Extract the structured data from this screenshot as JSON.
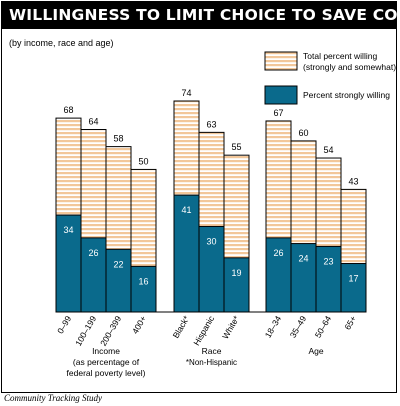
{
  "chart_data": {
    "type": "bar",
    "title": "WILLINGNESS TO LIMIT CHOICE TO SAVE COSTS",
    "subtitle": "(by income, race and age)",
    "ylim": [
      0,
      80
    ],
    "grid": false,
    "legend_position": "top-right",
    "series": [
      {
        "name": "Total percent willing (strongly and somewhat)",
        "color": "#f2c79a",
        "pattern": "horizontal-lines"
      },
      {
        "name": "Percent strongly willing",
        "color": "#0a6a8c"
      }
    ],
    "groups": [
      {
        "label_lines": [
          "Income",
          "(as percentage of",
          "federal poverty level)"
        ],
        "categories": [
          "0–99",
          "100–199",
          "200–399",
          "400+"
        ],
        "total": [
          68,
          64,
          58,
          50
        ],
        "strongly": [
          34,
          26,
          22,
          16
        ]
      },
      {
        "label_lines": [
          "Race",
          "*Non-Hispanic"
        ],
        "categories": [
          "Black*",
          "Hispanic",
          "White*"
        ],
        "total": [
          74,
          63,
          55
        ],
        "strongly": [
          41,
          30,
          19
        ]
      },
      {
        "label_lines": [
          "Age"
        ],
        "categories": [
          "18–34",
          "35–49",
          "50–64",
          "65+"
        ],
        "total": [
          67,
          60,
          54,
          43
        ],
        "strongly": [
          26,
          24,
          23,
          17
        ]
      }
    ]
  },
  "source": "Community Tracking Study"
}
